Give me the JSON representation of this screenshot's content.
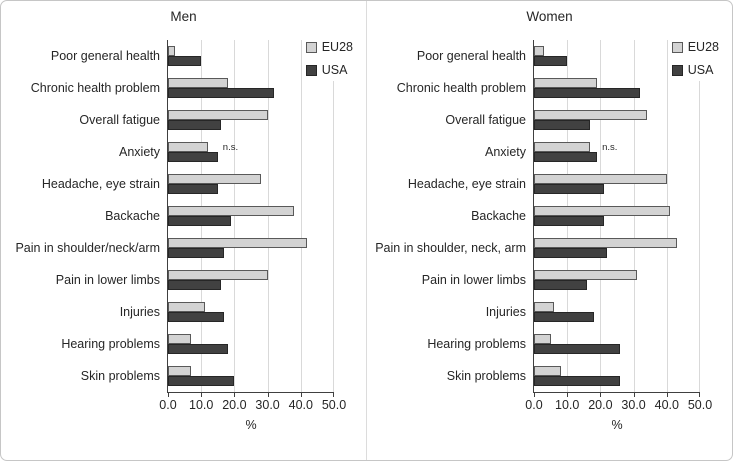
{
  "colors": {
    "eu28_fill": "#d3d3d3",
    "eu28_border": "#595959",
    "usa_fill": "#414141",
    "usa_border": "#262626",
    "gridline": "#d9d9d9",
    "axis_line": "#404040",
    "text": "#262626",
    "figure_border": "#c6c6c6"
  },
  "chart_data": [
    {
      "type": "bar",
      "orientation": "horizontal",
      "title": "Men",
      "categories": [
        "Poor general health",
        "Chronic health problem",
        "Overall fatigue",
        "Anxiety",
        "Headache, eye strain",
        "Backache",
        "Pain in shoulder/neck/arm",
        "Pain in lower limbs",
        "Injuries",
        "Hearing problems",
        "Skin problems"
      ],
      "series": [
        {
          "name": "EU28",
          "values": [
            2,
            18,
            30,
            12,
            28,
            38,
            42,
            30,
            11,
            7,
            7
          ]
        },
        {
          "name": "USA",
          "values": [
            10,
            32,
            16,
            15,
            15,
            19,
            17,
            16,
            17,
            18,
            20
          ]
        }
      ],
      "annotations": [
        {
          "category": "Anxiety",
          "text": "n.s."
        }
      ],
      "xlabel": "%",
      "xlim": [
        0,
        50
      ],
      "xticks": [
        "0.0",
        "10.0",
        "20.0",
        "30.0",
        "40.0",
        "50.0"
      ],
      "grid": true,
      "legend_position": "top-right"
    },
    {
      "type": "bar",
      "orientation": "horizontal",
      "title": "Women",
      "categories": [
        "Poor general health",
        "Chronic health problem",
        "Overall fatigue",
        "Anxiety",
        "Headache, eye strain",
        "Backache",
        "Pain in shoulder, neck, arm",
        "Pain in lower limbs",
        "Injuries",
        "Hearing problems",
        "Skin problems"
      ],
      "series": [
        {
          "name": "EU28",
          "values": [
            3,
            19,
            34,
            17,
            40,
            41,
            43,
            31,
            6,
            5,
            8
          ]
        },
        {
          "name": "USA",
          "values": [
            10,
            32,
            17,
            19,
            21,
            21,
            22,
            16,
            18,
            26,
            26
          ]
        }
      ],
      "annotations": [
        {
          "category": "Anxiety",
          "text": "n.s."
        }
      ],
      "xlabel": "%",
      "xlim": [
        0,
        50
      ],
      "xticks": [
        "0.0",
        "10.0",
        "20.0",
        "30.0",
        "40.0",
        "50.0"
      ],
      "grid": true,
      "legend_position": "top-right"
    }
  ]
}
